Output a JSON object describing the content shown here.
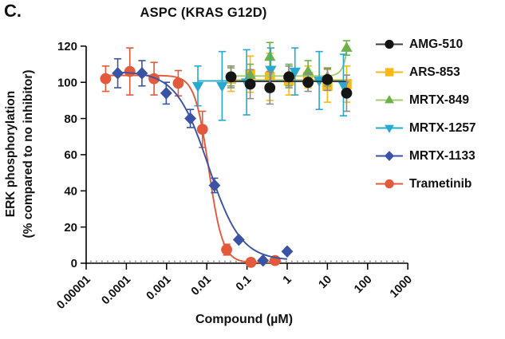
{
  "panel_label": "C.",
  "header": {
    "title": "ASPC (KRAS G12D)"
  },
  "axes": {
    "x": {
      "title": "Compound (µM)",
      "tick_labels": [
        "0.00001",
        "0.0001",
        "0.001",
        "0.01",
        "0.1",
        "1",
        "10",
        "100",
        "1000"
      ]
    },
    "y": {
      "title_line1": "ERK phosphorylation",
      "title_line2": "(% compared to no inhibitor)",
      "tick_labels": [
        "0",
        "20",
        "40",
        "60",
        "80",
        "100",
        "120"
      ]
    }
  },
  "chart_data": {
    "type": "line",
    "title": "ASPC (KRAS G12D)",
    "xlabel": "Compound (µM)",
    "ylabel": "ERK phosphorylation (% compared to no inhibitor)",
    "x_scale": "log10",
    "xlim": [
      1e-05,
      1000
    ],
    "ylim": [
      0,
      120
    ],
    "x_ticks": [
      1e-05,
      0.0001,
      0.001,
      0.01,
      0.1,
      1,
      10,
      100,
      1000
    ],
    "y_ticks": [
      0,
      20,
      40,
      60,
      80,
      100,
      120
    ],
    "grid": "off",
    "zero_baseline": "dotted-gray",
    "legend_position": "right",
    "series": [
      {
        "name": "AMG-510",
        "marker": "circle",
        "color": "#151515",
        "line_color": "#3c3c3c",
        "errbar_color": "#8c8c8c",
        "x": [
          0.04,
          0.12,
          0.37,
          1.1,
          3.3,
          10,
          30
        ],
        "y": [
          103,
          99,
          97,
          103,
          100,
          101.5,
          94
        ],
        "err": [
          6,
          8,
          9,
          6,
          5,
          6,
          10
        ],
        "trend": {
          "type": "flat",
          "level": 100.5
        }
      },
      {
        "name": "ARS-853",
        "marker": "square",
        "color": "#FDB814",
        "x": [
          0.04,
          0.12,
          0.37,
          1.1,
          3.3,
          10,
          30
        ],
        "y": [
          102,
          104.5,
          103,
          101,
          103,
          98,
          99
        ],
        "err": [
          7,
          10,
          13,
          8,
          6,
          9,
          10
        ],
        "trend": {
          "type": "flat",
          "level": 101.3
        }
      },
      {
        "name": "MRTX-849",
        "marker": "triangle-up",
        "color": "#6CB148",
        "line_color": "#A6CB70",
        "x": [
          0.04,
          0.12,
          0.37,
          1.1,
          3.3,
          10,
          30
        ],
        "y": [
          103,
          104,
          114,
          104,
          106,
          103,
          119
        ],
        "err": [
          5,
          6,
          8,
          6,
          6,
          5,
          4
        ],
        "trend": {
          "type": "flat_upturn",
          "level": 103.5,
          "end": 118
        }
      },
      {
        "name": "MRTX-1257",
        "marker": "triangle-down",
        "color": "#27A8CE",
        "x": [
          0.006,
          0.024,
          0.098,
          0.39,
          1.56,
          6.25,
          25
        ],
        "y": [
          98,
          98,
          100,
          107,
          106,
          101,
          98.5
        ],
        "err": [
          11,
          19,
          18,
          12,
          13,
          16,
          17
        ],
        "trend": {
          "type": "flat",
          "level": 100.8
        }
      },
      {
        "name": "MRTX-1133",
        "marker": "diamond",
        "color": "#3A53A4",
        "x": [
          6.1e-05,
          0.000244,
          0.00098,
          0.0039,
          0.0156,
          0.0625,
          0.25,
          1.0
        ],
        "y": [
          105,
          105,
          94,
          80,
          43,
          13,
          1.5,
          6.5
        ],
        "err": [
          8,
          7,
          6,
          5,
          4,
          0,
          0,
          0
        ],
        "trend": {
          "type": "sigmoid",
          "top": 106,
          "bottom": 1.5,
          "ic50_um": 0.011,
          "hill": 1.08
        }
      },
      {
        "name": "Trametinib",
        "marker": "circle",
        "color": "#E2593B",
        "x": [
          3.05e-05,
          0.000122,
          0.000488,
          0.00195,
          0.0078,
          0.0312,
          0.125,
          0.5
        ],
        "y": [
          102,
          106,
          102,
          99.5,
          74,
          7.5,
          0.5,
          1.5
        ],
        "err": [
          7,
          13,
          9,
          7,
          10,
          3,
          0,
          0
        ],
        "trend": {
          "type": "sigmoid",
          "top": 103.8,
          "bottom": 0.3,
          "ic50_um": 0.0112,
          "hill": 2.5
        }
      }
    ]
  }
}
